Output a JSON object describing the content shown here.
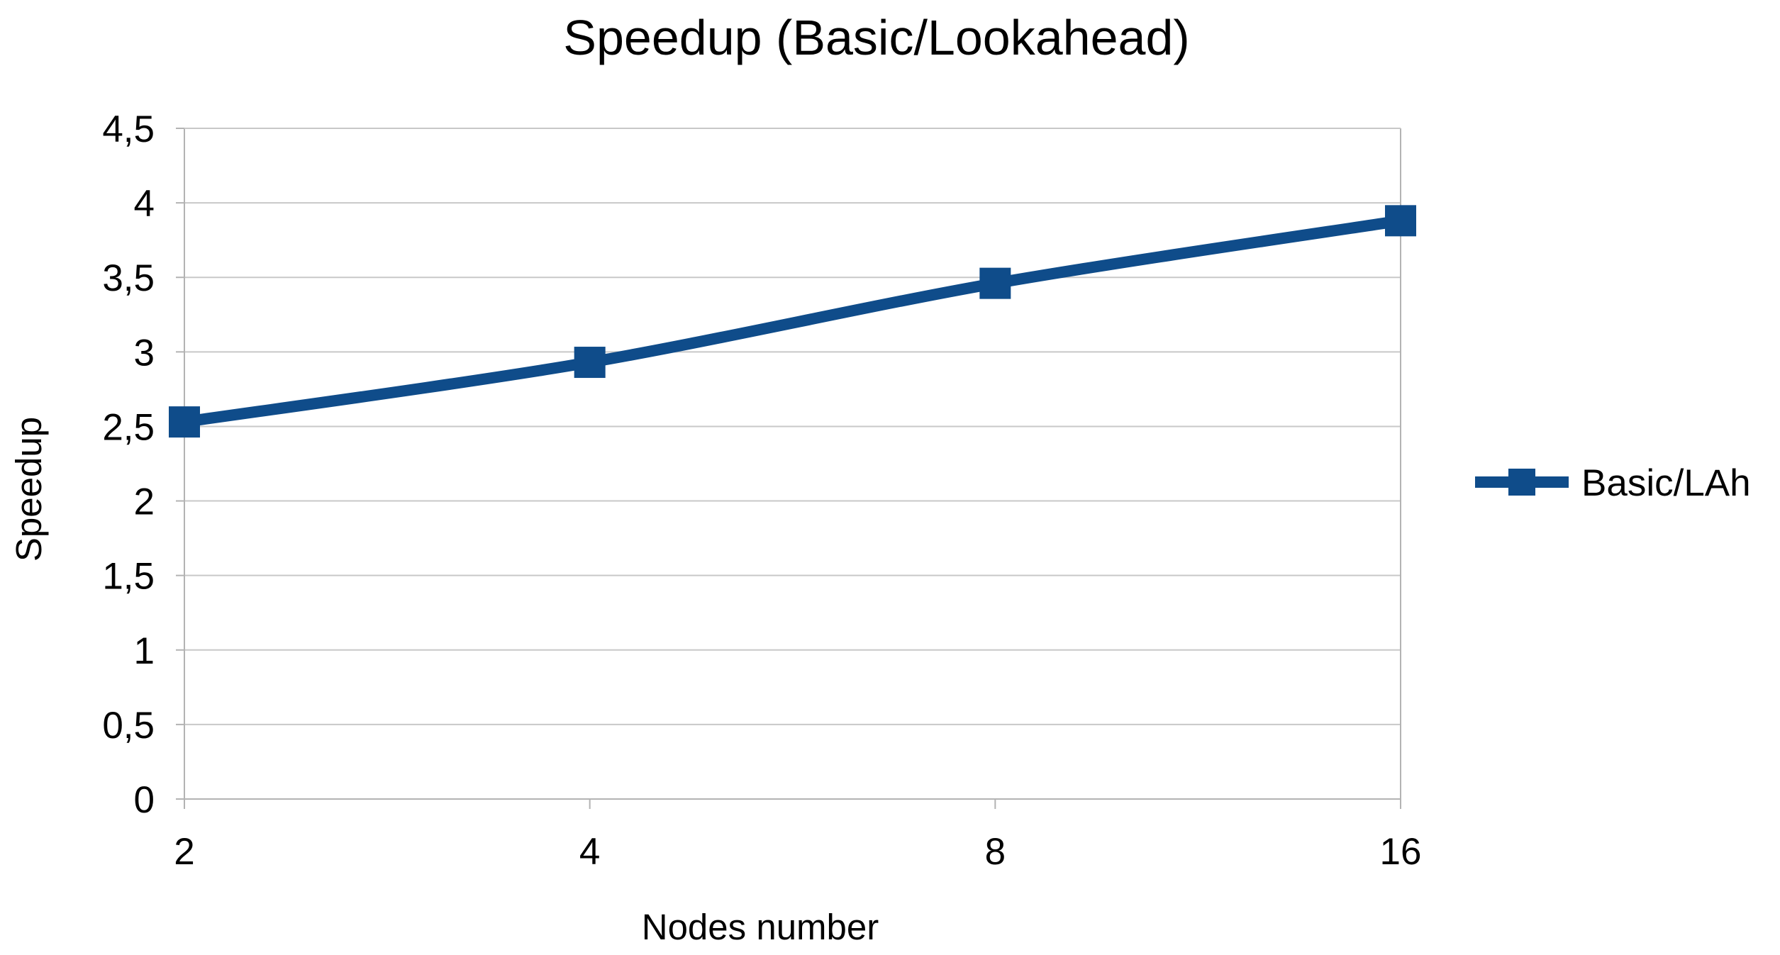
{
  "chart_data": {
    "type": "line",
    "title": "Speedup (Basic/Lookahead)",
    "xlabel": "Nodes number",
    "ylabel": "Speedup",
    "categories": [
      "2",
      "4",
      "8",
      "16"
    ],
    "series": [
      {
        "name": "Basic/LAh",
        "values": [
          2.53,
          2.93,
          3.46,
          3.88
        ],
        "color": "#0f4c8a",
        "marker": "square"
      }
    ],
    "ylim": [
      0,
      4.5
    ],
    "yticks": [
      0,
      0.5,
      1,
      1.5,
      2,
      2.5,
      3,
      3.5,
      4,
      4.5
    ],
    "ytick_labels": [
      "0",
      "0,5",
      "1",
      "1,5",
      "2",
      "2,5",
      "3",
      "3,5",
      "4",
      "4,5"
    ],
    "grid": true,
    "legend_position": "right",
    "colors": {
      "series": "#0f4c8a",
      "grid": "#c8c8c8",
      "axis": "#b3b3b3"
    }
  }
}
